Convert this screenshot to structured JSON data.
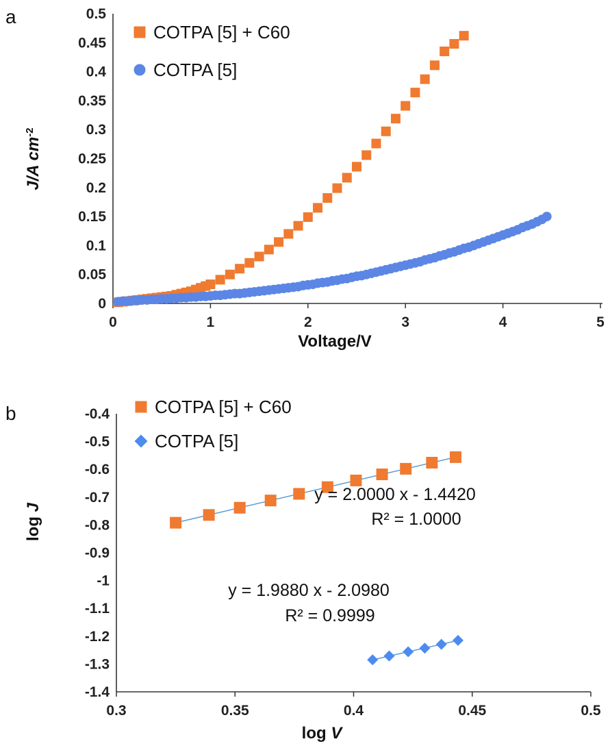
{
  "chart_data": [
    {
      "type": "scatter",
      "panel_label": "a",
      "xlabel": "Voltage/V",
      "ylabel": "J/A cm",
      "ylabel_sup": "-2",
      "xlim": [
        0,
        5
      ],
      "ylim": [
        0,
        0.5
      ],
      "x_ticks": [
        "0",
        "1",
        "2",
        "3",
        "4",
        "5"
      ],
      "y_ticks": [
        "0",
        "0.05",
        "0.1",
        "0.15",
        "0.2",
        "0.25",
        "0.3",
        "0.35",
        "0.4",
        "0.45",
        "0.5"
      ],
      "grid": false,
      "legend_position": "top-left",
      "series": [
        {
          "name": "COTPA [5] + C60",
          "marker": "square",
          "color": "#F07A30",
          "x": [
            0.05,
            0.1,
            0.15,
            0.2,
            0.25,
            0.3,
            0.35,
            0.4,
            0.45,
            0.5,
            0.55,
            0.6,
            0.65,
            0.7,
            0.75,
            0.8,
            0.85,
            0.9,
            0.95,
            1.0,
            1.1,
            1.2,
            1.3,
            1.4,
            1.5,
            1.6,
            1.7,
            1.8,
            1.9,
            2.0,
            2.1,
            2.2,
            2.3,
            2.4,
            2.5,
            2.6,
            2.7,
            2.8,
            2.9,
            3.0,
            3.1,
            3.2,
            3.3,
            3.4,
            3.5,
            3.6
          ],
          "y": [
            0.002,
            0.003,
            0.004,
            0.005,
            0.006,
            0.007,
            0.008,
            0.009,
            0.01,
            0.011,
            0.012,
            0.013,
            0.015,
            0.017,
            0.019,
            0.021,
            0.024,
            0.027,
            0.03,
            0.033,
            0.041,
            0.05,
            0.06,
            0.07,
            0.081,
            0.093,
            0.106,
            0.12,
            0.134,
            0.149,
            0.165,
            0.182,
            0.199,
            0.217,
            0.236,
            0.256,
            0.276,
            0.297,
            0.319,
            0.341,
            0.364,
            0.387,
            0.411,
            0.435,
            0.448,
            0.462
          ]
        },
        {
          "name": "COTPA [5]",
          "marker": "circle",
          "color": "#5B86E5",
          "x": [
            0.05,
            0.1,
            0.15,
            0.2,
            0.25,
            0.3,
            0.35,
            0.4,
            0.45,
            0.5,
            0.55,
            0.6,
            0.65,
            0.7,
            0.75,
            0.8,
            0.85,
            0.9,
            0.95,
            1.0,
            1.05,
            1.1,
            1.15,
            1.2,
            1.25,
            1.3,
            1.35,
            1.4,
            1.45,
            1.5,
            1.55,
            1.6,
            1.65,
            1.7,
            1.75,
            1.8,
            1.85,
            1.9,
            1.95,
            2.0,
            2.05,
            2.1,
            2.15,
            2.2,
            2.25,
            2.3,
            2.35,
            2.4,
            2.45,
            2.5,
            2.55,
            2.6,
            2.65,
            2.7,
            2.75,
            2.8,
            2.85,
            2.9,
            2.95,
            3.0,
            3.05,
            3.1,
            3.15,
            3.2,
            3.25,
            3.3,
            3.35,
            3.4,
            3.45,
            3.5,
            3.55,
            3.6,
            3.65,
            3.7,
            3.75,
            3.8,
            3.85,
            3.9,
            3.95,
            4.0,
            4.05,
            4.1,
            4.15,
            4.2,
            4.25,
            4.3,
            4.35,
            4.4,
            4.45
          ],
          "y": [
            0.003,
            0.004,
            0.004,
            0.005,
            0.005,
            0.006,
            0.006,
            0.007,
            0.007,
            0.008,
            0.008,
            0.009,
            0.009,
            0.01,
            0.01,
            0.011,
            0.011,
            0.012,
            0.012,
            0.013,
            0.014,
            0.014,
            0.015,
            0.016,
            0.017,
            0.017,
            0.018,
            0.019,
            0.02,
            0.021,
            0.022,
            0.023,
            0.024,
            0.025,
            0.026,
            0.027,
            0.028,
            0.029,
            0.031,
            0.032,
            0.033,
            0.035,
            0.036,
            0.037,
            0.039,
            0.04,
            0.042,
            0.043,
            0.045,
            0.047,
            0.048,
            0.05,
            0.052,
            0.054,
            0.056,
            0.058,
            0.06,
            0.062,
            0.064,
            0.066,
            0.068,
            0.07,
            0.072,
            0.075,
            0.077,
            0.079,
            0.082,
            0.084,
            0.087,
            0.089,
            0.092,
            0.095,
            0.097,
            0.1,
            0.103,
            0.106,
            0.109,
            0.112,
            0.115,
            0.118,
            0.121,
            0.124,
            0.127,
            0.131,
            0.134,
            0.137,
            0.141,
            0.145,
            0.15
          ]
        }
      ]
    },
    {
      "type": "scatter",
      "panel_label": "b",
      "xlabel": "log ",
      "xlabel_italic": "V",
      "ylabel": "log ",
      "ylabel_italic": "J",
      "xlim": [
        0.3,
        0.5
      ],
      "ylim": [
        -1.4,
        -0.4
      ],
      "x_ticks": [
        "0.3",
        "0.35",
        "0.4",
        "0.45",
        "0.5"
      ],
      "y_ticks": [
        "-0.4",
        "-0.5",
        "-0.6",
        "-0.7",
        "-0.8",
        "-0.9",
        "-1",
        "-1.1",
        "-1.2",
        "-1.3",
        "-1.4"
      ],
      "grid": false,
      "legend_position": "top-left",
      "series": [
        {
          "name": "COTPA [5] + C60",
          "marker": "square",
          "color": "#F07A30",
          "trendline_color": "#5B9BD5",
          "x": [
            0.325,
            0.339,
            0.352,
            0.365,
            0.377,
            0.389,
            0.401,
            0.412,
            0.422,
            0.433,
            0.443
          ],
          "y": [
            -0.792,
            -0.764,
            -0.738,
            -0.712,
            -0.688,
            -0.664,
            -0.64,
            -0.618,
            -0.598,
            -0.576,
            -0.556
          ],
          "annotation": [
            "y = 2.0000 x - 1.4420",
            "R² = 1.0000"
          ]
        },
        {
          "name": "COTPA [5]",
          "marker": "diamond",
          "color": "#4C8BF0",
          "trendline_color": "#5B9BD5",
          "x": [
            0.408,
            0.415,
            0.423,
            0.43,
            0.437,
            0.444
          ],
          "y": [
            -1.285,
            -1.271,
            -1.256,
            -1.243,
            -1.229,
            -1.215
          ],
          "annotation": [
            "y = 1.9880 x - 2.0980",
            "R² = 0.9999"
          ]
        }
      ]
    }
  ]
}
